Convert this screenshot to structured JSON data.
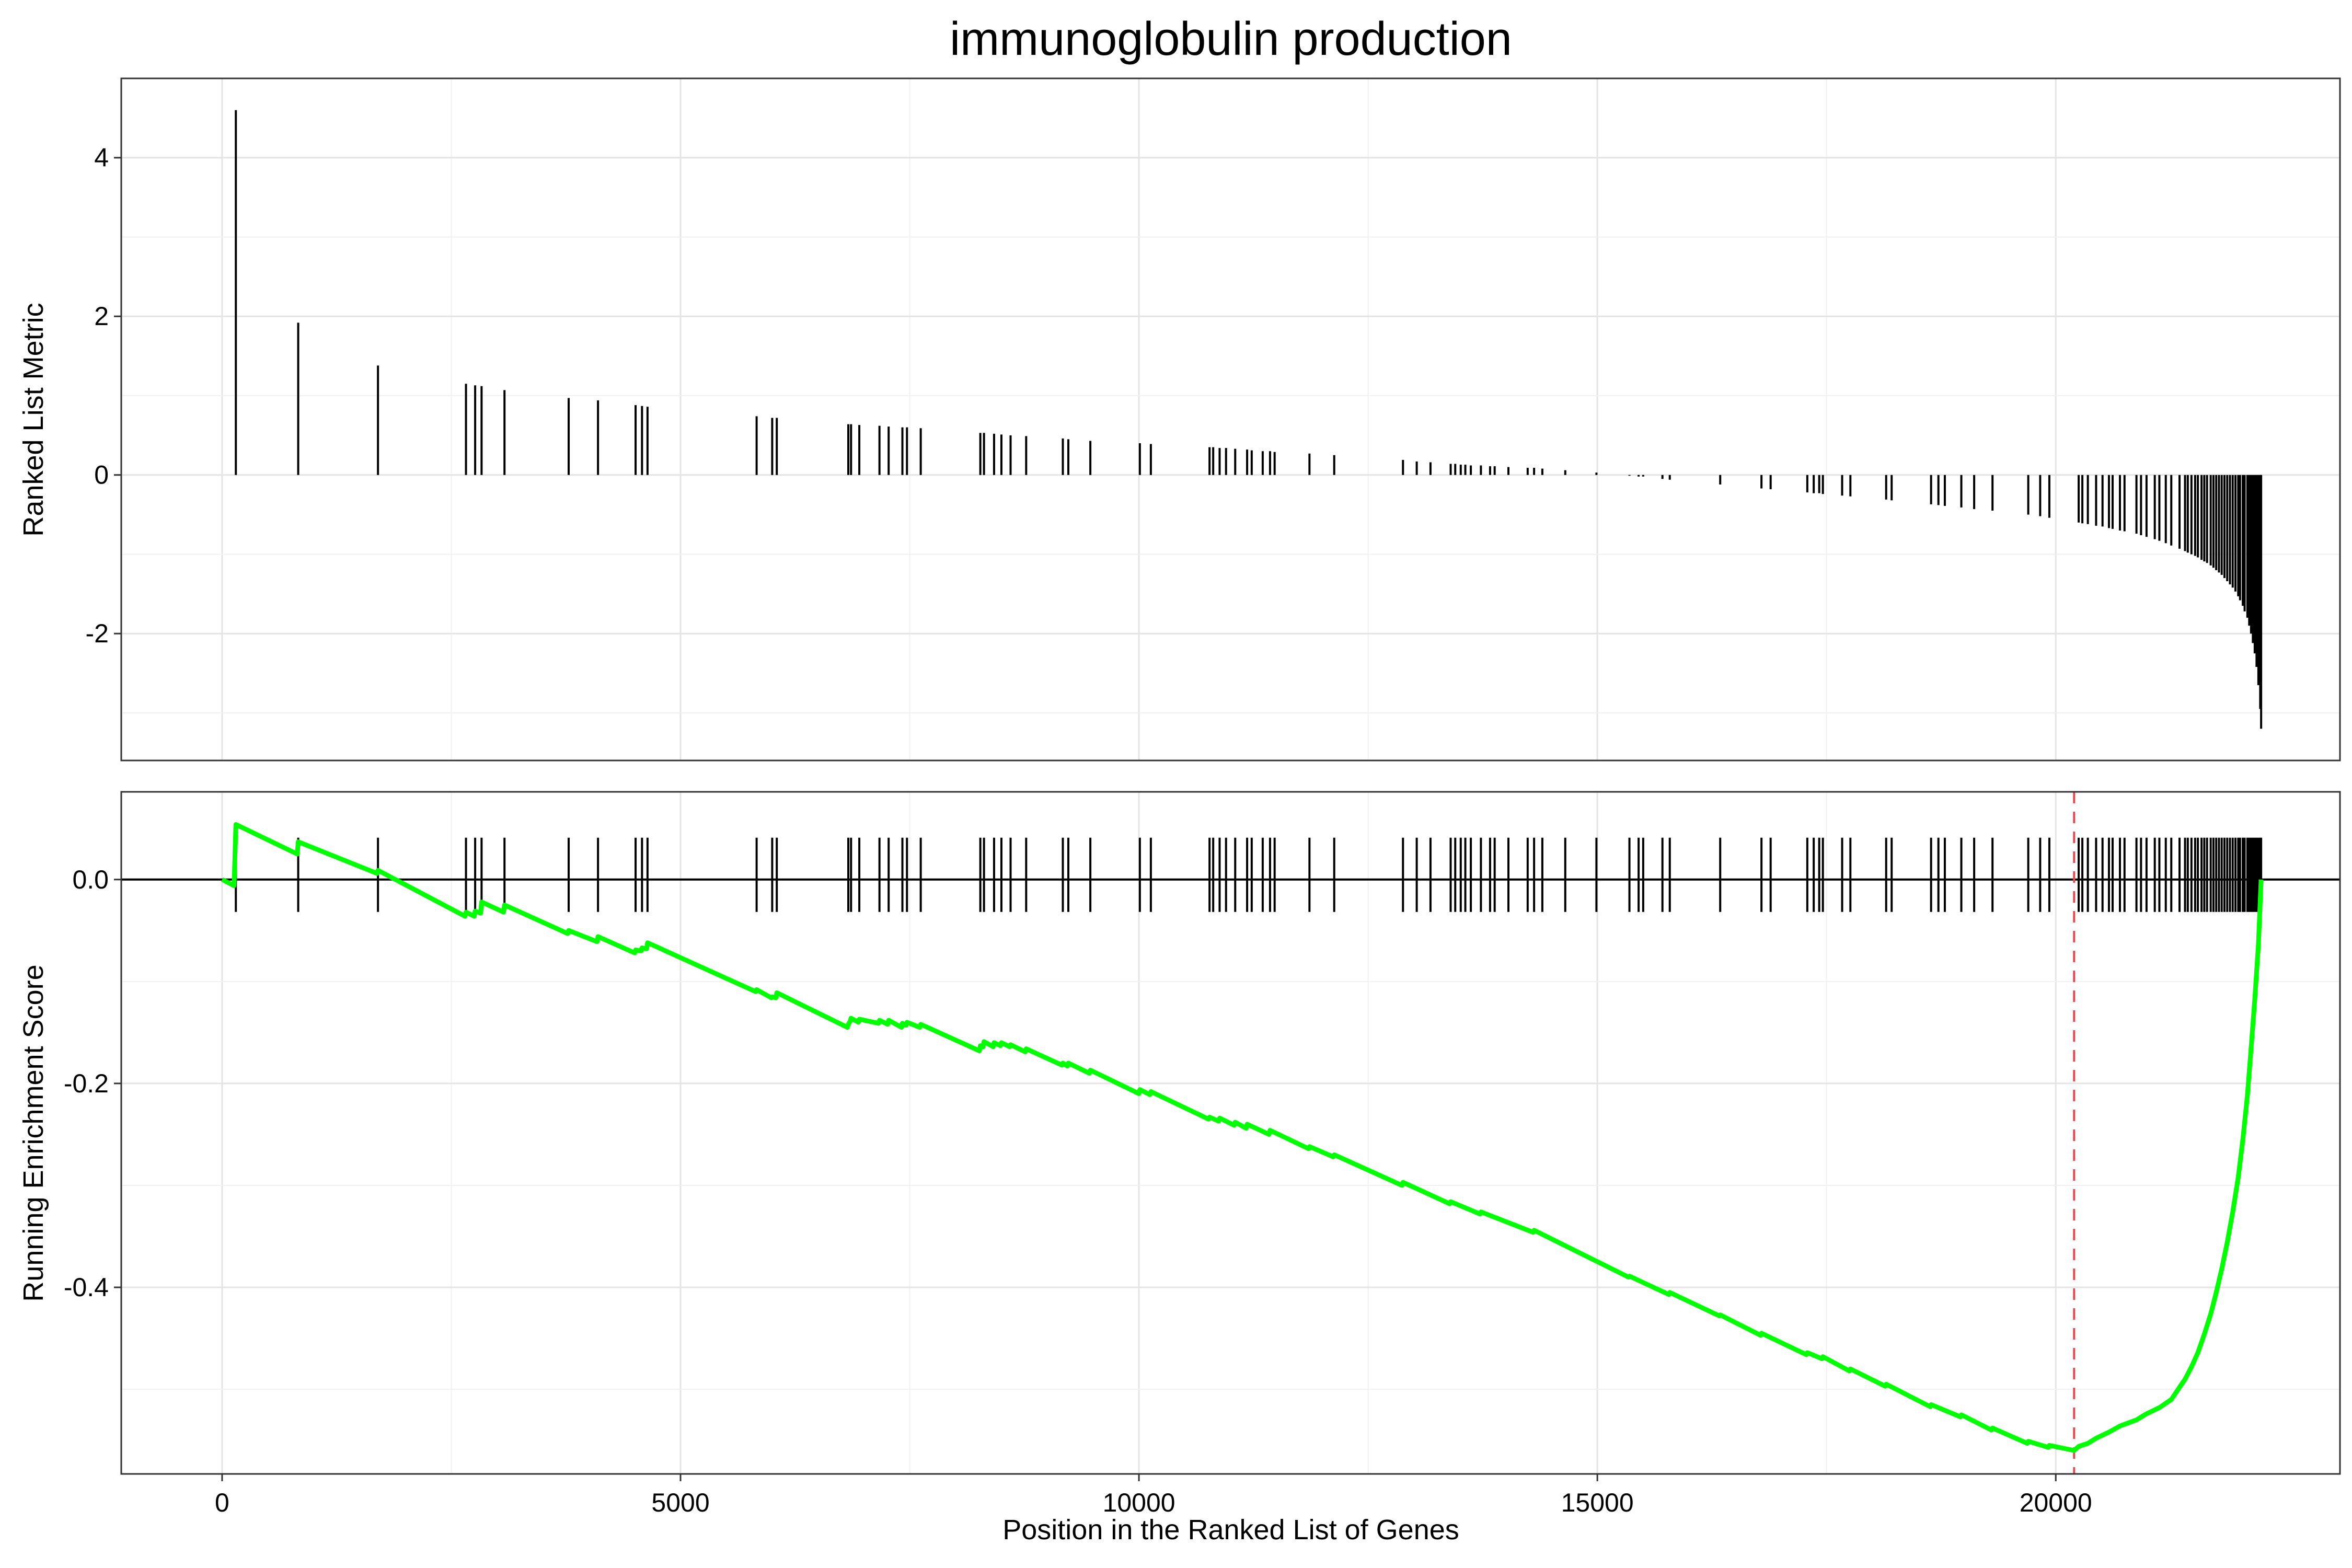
{
  "chart_data": {
    "type": "gsea",
    "title": "immunoglobulin production",
    "xlabel": "Position in the Ranked List of Genes",
    "xlim": [
      -1100,
      23100
    ],
    "x_ticks": [
      0,
      5000,
      10000,
      15000,
      20000
    ],
    "x_tick_labels": [
      "0",
      "5000",
      "10000",
      "15000",
      "20000"
    ],
    "grid": true,
    "panels": [
      {
        "name": "ranked-metric",
        "ylabel": "Ranked List Metric",
        "ylim": [
          -3.6,
          5.0
        ],
        "y_ticks": [
          4,
          2,
          0,
          -2
        ],
        "y_tick_labels": [
          "4",
          "2",
          "0",
          "-2"
        ],
        "metric": [
          [
            150,
            4.6
          ],
          [
            830,
            1.92
          ],
          [
            1700,
            1.38
          ],
          [
            2660,
            1.15
          ],
          [
            2760,
            1.13
          ],
          [
            2830,
            1.12
          ],
          [
            3080,
            1.07
          ],
          [
            3780,
            0.97
          ],
          [
            4100,
            0.94
          ],
          [
            4510,
            0.88
          ],
          [
            4580,
            0.87
          ],
          [
            4640,
            0.86
          ],
          [
            5830,
            0.74
          ],
          [
            6000,
            0.72
          ],
          [
            6050,
            0.72
          ],
          [
            6830,
            0.64
          ],
          [
            6860,
            0.64
          ],
          [
            6950,
            0.63
          ],
          [
            7170,
            0.62
          ],
          [
            7270,
            0.61
          ],
          [
            7420,
            0.6
          ],
          [
            7470,
            0.6
          ],
          [
            7620,
            0.59
          ],
          [
            8270,
            0.53
          ],
          [
            8310,
            0.53
          ],
          [
            8420,
            0.52
          ],
          [
            8500,
            0.51
          ],
          [
            8600,
            0.5
          ],
          [
            8770,
            0.49
          ],
          [
            9170,
            0.46
          ],
          [
            9230,
            0.45
          ],
          [
            9470,
            0.43
          ],
          [
            10010,
            0.4
          ],
          [
            10130,
            0.39
          ],
          [
            10770,
            0.35
          ],
          [
            10810,
            0.35
          ],
          [
            10880,
            0.34
          ],
          [
            10950,
            0.34
          ],
          [
            11050,
            0.33
          ],
          [
            11180,
            0.32
          ],
          [
            11230,
            0.31
          ],
          [
            11350,
            0.3
          ],
          [
            11430,
            0.3
          ],
          [
            11480,
            0.29
          ],
          [
            11860,
            0.27
          ],
          [
            12130,
            0.25
          ],
          [
            12880,
            0.19
          ],
          [
            13030,
            0.17
          ],
          [
            13180,
            0.16
          ],
          [
            13400,
            0.14
          ],
          [
            13450,
            0.14
          ],
          [
            13510,
            0.13
          ],
          [
            13560,
            0.13
          ],
          [
            13620,
            0.12
          ],
          [
            13730,
            0.12
          ],
          [
            13830,
            0.11
          ],
          [
            13880,
            0.11
          ],
          [
            14030,
            0.1
          ],
          [
            14240,
            0.09
          ],
          [
            14310,
            0.09
          ],
          [
            14400,
            0.08
          ],
          [
            14650,
            0.06
          ],
          [
            14990,
            0.03
          ],
          [
            15350,
            -0.01
          ],
          [
            15450,
            -0.02
          ],
          [
            15500,
            -0.02
          ],
          [
            15710,
            -0.05
          ],
          [
            15790,
            -0.06
          ],
          [
            16340,
            -0.12
          ],
          [
            16790,
            -0.17
          ],
          [
            16890,
            -0.18
          ],
          [
            17290,
            -0.22
          ],
          [
            17360,
            -0.23
          ],
          [
            17420,
            -0.23
          ],
          [
            17460,
            -0.24
          ],
          [
            17670,
            -0.26
          ],
          [
            17760,
            -0.27
          ],
          [
            18150,
            -0.31
          ],
          [
            18210,
            -0.32
          ],
          [
            18640,
            -0.37
          ],
          [
            18720,
            -0.38
          ],
          [
            18790,
            -0.39
          ],
          [
            18970,
            -0.41
          ],
          [
            19110,
            -0.43
          ],
          [
            19310,
            -0.45
          ],
          [
            19700,
            -0.5
          ],
          [
            19830,
            -0.52
          ],
          [
            19930,
            -0.54
          ],
          [
            20250,
            -0.6
          ],
          [
            20290,
            -0.61
          ],
          [
            20350,
            -0.62
          ],
          [
            20440,
            -0.64
          ],
          [
            20510,
            -0.65
          ],
          [
            20580,
            -0.67
          ],
          [
            20620,
            -0.68
          ],
          [
            20700,
            -0.7
          ],
          [
            20750,
            -0.71
          ],
          [
            20880,
            -0.74
          ],
          [
            20930,
            -0.76
          ],
          [
            20990,
            -0.78
          ],
          [
            21080,
            -0.81
          ],
          [
            21130,
            -0.83
          ],
          [
            21200,
            -0.86
          ],
          [
            21260,
            -0.89
          ],
          [
            21350,
            -0.93
          ],
          [
            21410,
            -0.96
          ],
          [
            21440,
            -0.98
          ],
          [
            21480,
            -1.0
          ],
          [
            21520,
            -1.02
          ],
          [
            21550,
            -1.04
          ],
          [
            21590,
            -1.07
          ],
          [
            21620,
            -1.09
          ],
          [
            21650,
            -1.11
          ],
          [
            21690,
            -1.14
          ],
          [
            21720,
            -1.17
          ],
          [
            21750,
            -1.2
          ],
          [
            21780,
            -1.23
          ],
          [
            21810,
            -1.26
          ],
          [
            21840,
            -1.3
          ],
          [
            21870,
            -1.34
          ],
          [
            21900,
            -1.38
          ],
          [
            21930,
            -1.42
          ],
          [
            21960,
            -1.47
          ],
          [
            21990,
            -1.53
          ],
          [
            22010,
            -1.58
          ],
          [
            22040,
            -1.65
          ],
          [
            22060,
            -1.72
          ],
          [
            22090,
            -1.8
          ],
          [
            22110,
            -1.9
          ],
          [
            22130,
            -2.0
          ],
          [
            22150,
            -2.12
          ],
          [
            22170,
            -2.25
          ],
          [
            22190,
            -2.42
          ],
          [
            22210,
            -2.65
          ],
          [
            22230,
            -2.95
          ],
          [
            22240,
            -3.2
          ]
        ]
      },
      {
        "name": "running-enrichment",
        "ylabel": "Running Enrichment Score",
        "ylim": [
          -0.583,
          0.086
        ],
        "y_ticks": [
          0.0,
          -0.2,
          -0.4
        ],
        "y_tick_labels": [
          "0.0",
          "-0.2",
          "-0.4"
        ],
        "line_color": "#00ff00",
        "es_minimum_x": 20200,
        "es_minimum_line_color": "#e8474f",
        "running_es": [
          [
            0,
            0.0
          ],
          [
            130,
            -0.006
          ],
          [
            150,
            0.054
          ],
          [
            820,
            0.025
          ],
          [
            830,
            0.037
          ],
          [
            1690,
            0.006
          ],
          [
            1700,
            0.009
          ],
          [
            2650,
            -0.036
          ],
          [
            2660,
            -0.032
          ],
          [
            2750,
            -0.036
          ],
          [
            2760,
            -0.031
          ],
          [
            2820,
            -0.033
          ],
          [
            2830,
            -0.022
          ],
          [
            3070,
            -0.032
          ],
          [
            3080,
            -0.025
          ],
          [
            3770,
            -0.053
          ],
          [
            3780,
            -0.05
          ],
          [
            4090,
            -0.061
          ],
          [
            4100,
            -0.056
          ],
          [
            4500,
            -0.072
          ],
          [
            4510,
            -0.069
          ],
          [
            4570,
            -0.07
          ],
          [
            4580,
            -0.067
          ],
          [
            4630,
            -0.068
          ],
          [
            4640,
            -0.062
          ],
          [
            5820,
            -0.11
          ],
          [
            5830,
            -0.108
          ],
          [
            5990,
            -0.116
          ],
          [
            6000,
            -0.115
          ],
          [
            6040,
            -0.116
          ],
          [
            6050,
            -0.111
          ],
          [
            6820,
            -0.145
          ],
          [
            6830,
            -0.142
          ],
          [
            6850,
            -0.139
          ],
          [
            6860,
            -0.136
          ],
          [
            6940,
            -0.14
          ],
          [
            6950,
            -0.137
          ],
          [
            7160,
            -0.141
          ],
          [
            7170,
            -0.138
          ],
          [
            7260,
            -0.142
          ],
          [
            7270,
            -0.138
          ],
          [
            7410,
            -0.145
          ],
          [
            7420,
            -0.141
          ],
          [
            7460,
            -0.143
          ],
          [
            7470,
            -0.14
          ],
          [
            7610,
            -0.145
          ],
          [
            7620,
            -0.142
          ],
          [
            8260,
            -0.168
          ],
          [
            8270,
            -0.163
          ],
          [
            8300,
            -0.164
          ],
          [
            8310,
            -0.159
          ],
          [
            8410,
            -0.164
          ],
          [
            8420,
            -0.16
          ],
          [
            8490,
            -0.163
          ],
          [
            8500,
            -0.16
          ],
          [
            8590,
            -0.164
          ],
          [
            8600,
            -0.162
          ],
          [
            8760,
            -0.169
          ],
          [
            8770,
            -0.166
          ],
          [
            9160,
            -0.182
          ],
          [
            9170,
            -0.18
          ],
          [
            9220,
            -0.183
          ],
          [
            9230,
            -0.18
          ],
          [
            9460,
            -0.19
          ],
          [
            9470,
            -0.187
          ],
          [
            10000,
            -0.21
          ],
          [
            10010,
            -0.206
          ],
          [
            10120,
            -0.211
          ],
          [
            10130,
            -0.208
          ],
          [
            10760,
            -0.235
          ],
          [
            10770,
            -0.233
          ],
          [
            10870,
            -0.237
          ],
          [
            10880,
            -0.234
          ],
          [
            11040,
            -0.241
          ],
          [
            11050,
            -0.238
          ],
          [
            11170,
            -0.244
          ],
          [
            11180,
            -0.24
          ],
          [
            11420,
            -0.25
          ],
          [
            11430,
            -0.246
          ],
          [
            11850,
            -0.264
          ],
          [
            11860,
            -0.262
          ],
          [
            12120,
            -0.272
          ],
          [
            12130,
            -0.27
          ],
          [
            12870,
            -0.3
          ],
          [
            12880,
            -0.297
          ],
          [
            13390,
            -0.318
          ],
          [
            13400,
            -0.316
          ],
          [
            13720,
            -0.328
          ],
          [
            13730,
            -0.326
          ],
          [
            14300,
            -0.346
          ],
          [
            14310,
            -0.344
          ],
          [
            15340,
            -0.39
          ],
          [
            15350,
            -0.389
          ],
          [
            15780,
            -0.407
          ],
          [
            15790,
            -0.405
          ],
          [
            16330,
            -0.428
          ],
          [
            16340,
            -0.427
          ],
          [
            16780,
            -0.447
          ],
          [
            16790,
            -0.445
          ],
          [
            17280,
            -0.466
          ],
          [
            17290,
            -0.464
          ],
          [
            17450,
            -0.47
          ],
          [
            17460,
            -0.468
          ],
          [
            17750,
            -0.482
          ],
          [
            17760,
            -0.48
          ],
          [
            18140,
            -0.497
          ],
          [
            18150,
            -0.495
          ],
          [
            18630,
            -0.517
          ],
          [
            18640,
            -0.515
          ],
          [
            18960,
            -0.527
          ],
          [
            18970,
            -0.525
          ],
          [
            19300,
            -0.54
          ],
          [
            19310,
            -0.538
          ],
          [
            19690,
            -0.553
          ],
          [
            19700,
            -0.551
          ],
          [
            19920,
            -0.557
          ],
          [
            19930,
            -0.555
          ],
          [
            20200,
            -0.56
          ],
          [
            20250,
            -0.556
          ],
          [
            20350,
            -0.553
          ],
          [
            20440,
            -0.548
          ],
          [
            20580,
            -0.542
          ],
          [
            20700,
            -0.536
          ],
          [
            20880,
            -0.53
          ],
          [
            20990,
            -0.524
          ],
          [
            21130,
            -0.518
          ],
          [
            21260,
            -0.51
          ],
          [
            21350,
            -0.498
          ],
          [
            21410,
            -0.49
          ],
          [
            21480,
            -0.478
          ],
          [
            21550,
            -0.464
          ],
          [
            21620,
            -0.446
          ],
          [
            21690,
            -0.426
          ],
          [
            21750,
            -0.405
          ],
          [
            21810,
            -0.382
          ],
          [
            21870,
            -0.356
          ],
          [
            21930,
            -0.326
          ],
          [
            21990,
            -0.292
          ],
          [
            22040,
            -0.255
          ],
          [
            22090,
            -0.212
          ],
          [
            22130,
            -0.166
          ],
          [
            22170,
            -0.118
          ],
          [
            22210,
            -0.064
          ],
          [
            22240,
            0.0
          ]
        ]
      }
    ]
  }
}
